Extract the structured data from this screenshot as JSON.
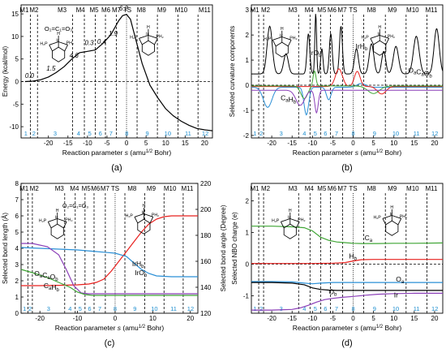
{
  "colors": {
    "black": "#000000",
    "red": "#e8201e",
    "blue": "#2a8fd6",
    "green": "#3fa535",
    "purple": "#8b3fb8",
    "cyan_label": "#1e8fd0"
  },
  "chart_data": [
    {
      "type": "line",
      "panel_label": "(a)",
      "xlabel_main": "Reaction parameter ",
      "xlabel_s": "s",
      "xlabel_unit": " (amu",
      "xlabel_sup": "1/2",
      "xlabel_end": " Bohr)",
      "ylabel": "Energy (kcal/mol)",
      "xlim": [
        -27,
        22
      ],
      "ylim": [
        -12.5,
        17
      ],
      "x_ticks": [
        -20,
        -15,
        -10,
        -5,
        0,
        5,
        10,
        15,
        20
      ],
      "x_tick_labels": [
        "-20",
        "-15",
        "-10",
        "-5",
        "0",
        "5",
        "10",
        "15",
        "20"
      ],
      "y_ticks": [
        -10,
        -5,
        0,
        5,
        10,
        15
      ],
      "y_tick_labels": [
        "-10",
        "-5",
        "0",
        "5",
        "10",
        "15"
      ],
      "top_labels": [
        {
          "text": "M1",
          "x": -26.2
        },
        {
          "text": "M2",
          "x": -23.7
        },
        {
          "text": "M3",
          "x": -16.5
        },
        {
          "text": "M4",
          "x": -11.8
        },
        {
          "text": "M5",
          "x": -8.3
        },
        {
          "text": "M6",
          "x": -5.3
        },
        {
          "text": "M7",
          "x": -2.6
        },
        {
          "text": "TS",
          "x": 0.2
        },
        {
          "text": "M8",
          "x": 3.8
        },
        {
          "text": "M9",
          "x": 9.0
        },
        {
          "text": "M10",
          "x": 14.0
        },
        {
          "text": "M11",
          "x": 20.0
        }
      ],
      "phase_labels": [
        "1",
        "2",
        "3",
        "4",
        "5",
        "6",
        "7",
        "8",
        "9",
        "10",
        "11",
        "12"
      ],
      "phase_boundaries": [
        -24.6,
        -22.8,
        -13.8,
        -10.8,
        -8.0,
        -5.4,
        -2.6,
        2.7,
        7.9,
        13.2,
        18.3
      ],
      "energy_labels": [
        {
          "text": "0.0",
          "x": -26.0,
          "y": 0.8
        },
        {
          "text": "1.5",
          "x": -20.5,
          "y": 2.4
        },
        {
          "text": "4.6",
          "x": -14.6,
          "y": 5.3
        },
        {
          "text": "0.3",
          "x": -10.7,
          "y": 8.1
        },
        {
          "text": "0.4",
          "x": -7.5,
          "y": 8.4
        },
        {
          "text": "1.9",
          "x": -4.6,
          "y": 10.2
        },
        {
          "text": "6.2",
          "x": -1.9,
          "y": 15.7
        }
      ],
      "structure_formula": "O₂=C₁=O₃",
      "series": [
        {
          "values_x": [
            -26,
            -24,
            -22,
            -20,
            -18,
            -16,
            -14,
            -12,
            -10,
            -8,
            -6,
            -4,
            -2,
            -1,
            0,
            1,
            2,
            4,
            6,
            8,
            10,
            12,
            14,
            16,
            18,
            20,
            22
          ],
          "values_y": [
            0,
            0.1,
            0.4,
            1.0,
            2.0,
            3.3,
            5.0,
            6.4,
            6.7,
            7.0,
            8.5,
            10.4,
            13.5,
            14.6,
            14.9,
            13.8,
            10.5,
            4.0,
            -0.8,
            -3.6,
            -6.0,
            -7.6,
            -8.8,
            -9.7,
            -10.4,
            -10.7,
            -10.9
          ]
        }
      ]
    },
    {
      "type": "line",
      "panel_label": "(b)",
      "ylabel": "Selected curvature components",
      "xlim": [
        -25,
        22
      ],
      "ylim": [
        -2.1,
        3.2
      ],
      "x_ticks": [
        -20,
        -15,
        -10,
        -5,
        0,
        5,
        10,
        15,
        20
      ],
      "x_tick_labels": [
        "-20",
        "-15",
        "-10",
        "-5",
        "0",
        "5",
        "10",
        "15",
        "20"
      ],
      "y_ticks": [
        -2,
        -1,
        0,
        1,
        2,
        3
      ],
      "y_tick_labels": [
        "-2",
        "-1",
        "0",
        "1",
        "2",
        "3"
      ],
      "top_labels": [
        {
          "text": "M1",
          "x": -24.2
        },
        {
          "text": "M2",
          "x": -21.5
        },
        {
          "text": "M3",
          "x": -14.8
        },
        {
          "text": "M4",
          "x": -10.8
        },
        {
          "text": "M5",
          "x": -7.7
        },
        {
          "text": "M6",
          "x": -5.2
        },
        {
          "text": "M7",
          "x": -2.7
        },
        {
          "text": "TS",
          "x": 0.0
        },
        {
          "text": "M8",
          "x": 4.5
        },
        {
          "text": "M9",
          "x": 9.6
        },
        {
          "text": "M10",
          "x": 14.6
        },
        {
          "text": "M11",
          "x": 19.2
        }
      ],
      "phase_boundaries": [
        -23.2,
        -22.0,
        -13.4,
        -10.6,
        -8.0,
        -5.6,
        -2.6,
        2.6,
        7.9,
        13.0,
        18.1
      ],
      "series_labels": [
        {
          "text": "IrO",
          "sub": "b",
          "x": -10.8,
          "y": 1.2
        },
        {
          "text": "IrH",
          "sub": "b",
          "x": 0.6,
          "y": 1.45
        },
        {
          "text": "O",
          "sub": "a",
          "extra": "C",
          "sub2": "a",
          "extra2": "O",
          "sub3": "b",
          "x": 13.5,
          "y": 0.5
        },
        {
          "text": "C",
          "sub": "a",
          "extra": "H",
          "sub2": "b",
          "x": -17.8,
          "y": -0.6
        }
      ]
    },
    {
      "type": "line",
      "panel_label": "(c)",
      "ylabel_left": "Selected bond length (Å)",
      "ylabel_right": "Selected bond angle (Degree)",
      "xlim": [
        -25,
        22
      ],
      "ylim": [
        0,
        8
      ],
      "ylim_right": [
        120,
        220
      ],
      "y_ticks": [
        0,
        1,
        2,
        3,
        4,
        5,
        6,
        7,
        8
      ],
      "y_tick_labels": [
        "0",
        "1",
        "2",
        "3",
        "4",
        "5",
        "6",
        "7",
        "8"
      ],
      "y_ticks_right": [
        120,
        140,
        160,
        180,
        200,
        220
      ],
      "y_tick_labels_right": [
        "120",
        "140",
        "160",
        "180",
        "200",
        "220"
      ],
      "x_ticks": [
        -20,
        -10,
        0,
        10,
        20
      ],
      "x_tick_labels": [
        "-20",
        "-10",
        "0",
        "10",
        "20"
      ],
      "top_labels": [
        {
          "text": "M1",
          "x": -24.2
        },
        {
          "text": "M2",
          "x": -21.5
        },
        {
          "text": "M3",
          "x": -14.8
        },
        {
          "text": "M4",
          "x": -10.8
        },
        {
          "text": "M5",
          "x": -7.7
        },
        {
          "text": "M6",
          "x": -5.2
        },
        {
          "text": "M7",
          "x": -2.7
        },
        {
          "text": "TS",
          "x": 0.0
        },
        {
          "text": "M8",
          "x": 4.5
        },
        {
          "text": "M9",
          "x": 9.6
        },
        {
          "text": "M10",
          "x": 14.6
        },
        {
          "text": "M11",
          "x": 19.2
        }
      ],
      "phase_boundaries": [
        -23.2,
        -22.0,
        -13.4,
        -10.6,
        -8.0,
        -5.6,
        -2.6,
        2.6,
        7.9,
        13.0,
        18.1
      ],
      "series_labels": [
        {
          "text": "IrH",
          "sub": "b",
          "x": 4.5,
          "y": 2.9
        },
        {
          "text": "IrO",
          "sub": "b",
          "x": 5.2,
          "y": 2.35
        },
        {
          "text": "O",
          "sub": "a",
          "extra": "C",
          "sub2": "a",
          "extra2": "O",
          "sub3": "b",
          "x": -21.5,
          "y": 2.3
        },
        {
          "text": "C",
          "sub": "a",
          "extra": "H",
          "sub2": "b",
          "x": -19.0,
          "y": 1.55
        }
      ],
      "series": [
        {
          "name": "IrHb",
          "color_key": "red",
          "x": [
            -25,
            -20,
            -15,
            -10,
            -7,
            -5,
            -3,
            -1,
            1,
            3,
            5,
            7,
            9,
            11,
            13,
            15,
            18,
            22
          ],
          "y": [
            1.7,
            1.7,
            1.72,
            1.75,
            1.8,
            1.9,
            2.1,
            2.6,
            3.2,
            3.8,
            4.4,
            5.0,
            5.5,
            5.8,
            5.95,
            6.0,
            6.0,
            6.0
          ]
        },
        {
          "name": "IrOb",
          "color_key": "blue",
          "x": [
            -25,
            -20,
            -15,
            -10,
            -5,
            0,
            3,
            5,
            7,
            9,
            11,
            15,
            22
          ],
          "y": [
            4.05,
            4.0,
            3.95,
            3.9,
            3.8,
            3.7,
            3.5,
            3.1,
            2.7,
            2.45,
            2.3,
            2.25,
            2.25
          ]
        },
        {
          "name": "OaCaOb",
          "color_key": "purple",
          "x": [
            -25,
            -22,
            -18,
            -15,
            -13,
            -11,
            -9,
            -7,
            -5,
            -3,
            -1,
            1,
            5,
            10,
            22
          ],
          "y": [
            4.3,
            4.3,
            4.1,
            3.6,
            2.7,
            1.7,
            1.25,
            1.2,
            1.2,
            1.2,
            1.2,
            1.2,
            1.2,
            1.2,
            1.2
          ]
        },
        {
          "name": "CaHb",
          "color_key": "green",
          "x": [
            -25,
            -22,
            -18,
            -15,
            -12,
            -10,
            -8,
            -6,
            -4,
            -2,
            0,
            3,
            8,
            22
          ],
          "y": [
            2.7,
            2.5,
            2.2,
            1.9,
            1.6,
            1.3,
            1.15,
            1.1,
            1.1,
            1.1,
            1.1,
            1.1,
            1.1,
            1.1
          ]
        }
      ]
    },
    {
      "type": "line",
      "panel_label": "(d)",
      "ylabel": "Selected NBO charge (e)",
      "xlim": [
        -25,
        22
      ],
      "ylim": [
        -1.55,
        2.55
      ],
      "y_ticks": [
        -1,
        0,
        1,
        2
      ],
      "y_tick_labels": [
        "-1",
        "0",
        "1",
        "2"
      ],
      "x_ticks": [
        -20,
        -15,
        -10,
        -5,
        0,
        5,
        10,
        15,
        20
      ],
      "x_tick_labels": [
        "-20",
        "-15",
        "-10",
        "-5",
        "0",
        "5",
        "10",
        "15",
        "20"
      ],
      "top_labels": [
        {
          "text": "M1",
          "x": -24.2
        },
        {
          "text": "M2",
          "x": -21.5
        },
        {
          "text": "M3",
          "x": -14.8
        },
        {
          "text": "M4",
          "x": -10.8
        },
        {
          "text": "M5",
          "x": -7.7
        },
        {
          "text": "M6",
          "x": -5.2
        },
        {
          "text": "M7",
          "x": -2.7
        },
        {
          "text": "TS",
          "x": 0.0
        },
        {
          "text": "M8",
          "x": 4.5
        },
        {
          "text": "M9",
          "x": 9.6
        },
        {
          "text": "M10",
          "x": 14.6
        },
        {
          "text": "M11",
          "x": 19.2
        }
      ],
      "phase_boundaries": [
        -23.2,
        -22.0,
        -13.4,
        -10.6,
        -8.0,
        -5.6,
        -2.6,
        2.6,
        7.9,
        13.0,
        18.1
      ],
      "series_labels": [
        {
          "text": "C",
          "sub": "a",
          "x": 2.8,
          "y": 0.75
        },
        {
          "text": "H",
          "sub": "b",
          "x": -1.0,
          "y": 0.18
        },
        {
          "text": "O",
          "sub": "a",
          "x": 10.5,
          "y": -0.55
        },
        {
          "text": "O",
          "sub": "b",
          "x": -6.0,
          "y": -0.95
        },
        {
          "text": "Ir",
          "sub": "",
          "x": 10.0,
          "y": -1.05
        }
      ],
      "series": [
        {
          "name": "Ca",
          "color_key": "green",
          "x": [
            -25,
            -20,
            -15,
            -12,
            -10,
            -8,
            -6,
            -4,
            -2,
            0,
            2,
            4,
            6,
            10,
            15,
            22
          ],
          "y": [
            1.2,
            1.2,
            1.18,
            1.15,
            1.05,
            0.85,
            0.75,
            0.7,
            0.68,
            0.66,
            0.65,
            0.65,
            0.65,
            0.66,
            0.66,
            0.67
          ]
        },
        {
          "name": "Hb",
          "color_key": "red",
          "x": [
            -25,
            -10,
            -5,
            -2,
            0,
            2,
            5,
            10,
            22
          ],
          "y": [
            0.02,
            0.02,
            0.03,
            0.05,
            0.1,
            0.14,
            0.15,
            0.15,
            0.15
          ]
        },
        {
          "name": "Oa",
          "color_key": "blue",
          "x": [
            -25,
            -20,
            -15,
            -12,
            -10,
            -8,
            -5,
            -2,
            0,
            5,
            10,
            22
          ],
          "y": [
            -0.55,
            -0.55,
            -0.56,
            -0.6,
            -0.62,
            -0.6,
            -0.58,
            -0.58,
            -0.58,
            -0.58,
            -0.58,
            -0.58
          ]
        },
        {
          "name": "Ob",
          "color_key": "black",
          "x": [
            -25,
            -20,
            -15,
            -12,
            -10,
            -8,
            -6,
            -4,
            -2,
            0,
            5,
            10,
            22
          ],
          "y": [
            -0.58,
            -0.58,
            -0.6,
            -0.65,
            -0.75,
            -0.8,
            -0.82,
            -0.83,
            -0.83,
            -0.83,
            -0.83,
            -0.83,
            -0.83
          ]
        },
        {
          "name": "Ir",
          "color_key": "purple",
          "x": [
            -25,
            -20,
            -15,
            -13,
            -11,
            -9,
            -7,
            -5,
            -3,
            0,
            3,
            6,
            10,
            15,
            22
          ],
          "y": [
            -1.45,
            -1.45,
            -1.43,
            -1.38,
            -1.3,
            -1.2,
            -1.12,
            -1.08,
            -1.05,
            -1.02,
            -0.98,
            -0.95,
            -0.93,
            -0.92,
            -0.92
          ]
        }
      ]
    }
  ]
}
